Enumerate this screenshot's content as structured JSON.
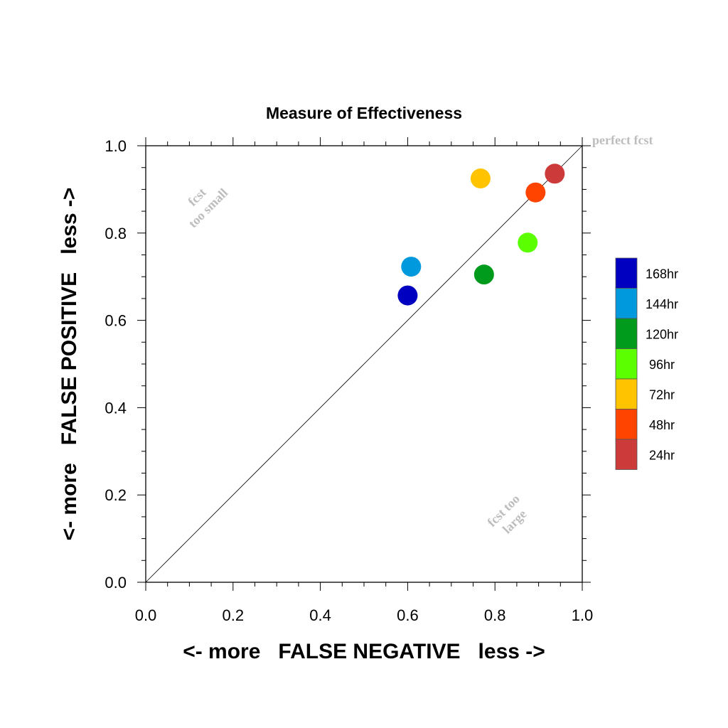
{
  "chart_data": {
    "type": "scatter",
    "title": "Measure of Effectiveness",
    "xlabel": "<- more   FALSE NEGATIVE   less ->",
    "ylabel": "<- more   FALSE POSITIVE   less ->",
    "xlim": [
      0.0,
      1.0
    ],
    "ylim": [
      0.0,
      1.0
    ],
    "xticks": [
      "0.0",
      "0.2",
      "0.4",
      "0.6",
      "0.8",
      "1.0"
    ],
    "yticks": [
      "0.0",
      "0.2",
      "0.4",
      "0.6",
      "0.8",
      "1.0"
    ],
    "grid": false,
    "diagonal_reference_line": true,
    "annotations": {
      "perfect": "perfect fcst",
      "small_line1": "fcst",
      "small_line2": "too small",
      "large_line1": "fcst too",
      "large_line2": "large"
    },
    "legend_position": "right",
    "series": [
      {
        "name": "168hr",
        "color": "#0000c0",
        "x": 0.6,
        "y": 0.657
      },
      {
        "name": "144hr",
        "color": "#0099dd",
        "x": 0.608,
        "y": 0.723
      },
      {
        "name": "120hr",
        "color": "#009a1c",
        "x": 0.775,
        "y": 0.705
      },
      {
        "name": "96hr",
        "color": "#5bff00",
        "x": 0.875,
        "y": 0.778
      },
      {
        "name": "72hr",
        "color": "#ffc300",
        "x": 0.767,
        "y": 0.925
      },
      {
        "name": "48hr",
        "color": "#ff4400",
        "x": 0.893,
        "y": 0.893
      },
      {
        "name": "24hr",
        "color": "#cc3a3a",
        "x": 0.937,
        "y": 0.936
      }
    ]
  }
}
